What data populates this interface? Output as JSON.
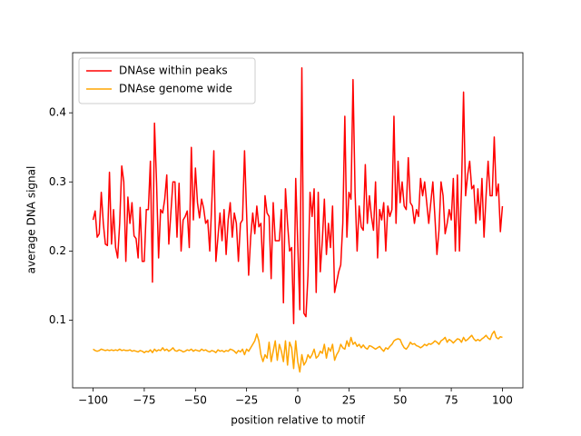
{
  "chart_data": {
    "type": "line",
    "xlabel": "position relative to motif",
    "ylabel": "average DNA signal",
    "x": [
      -100,
      -99,
      -98,
      -97,
      -96,
      -95,
      -94,
      -93,
      -92,
      -91,
      -90,
      -89,
      -88,
      -87,
      -86,
      -85,
      -84,
      -83,
      -82,
      -81,
      -80,
      -79,
      -78,
      -77,
      -76,
      -75,
      -74,
      -73,
      -72,
      -71,
      -70,
      -69,
      -68,
      -67,
      -66,
      -65,
      -64,
      -63,
      -62,
      -61,
      -60,
      -59,
      -58,
      -57,
      -56,
      -55,
      -54,
      -53,
      -52,
      -51,
      -50,
      -49,
      -48,
      -47,
      -46,
      -45,
      -44,
      -43,
      -42,
      -41,
      -40,
      -39,
      -38,
      -37,
      -36,
      -35,
      -34,
      -33,
      -32,
      -31,
      -30,
      -29,
      -28,
      -27,
      -26,
      -25,
      -24,
      -23,
      -22,
      -21,
      -20,
      -19,
      -18,
      -17,
      -16,
      -15,
      -14,
      -13,
      -12,
      -11,
      -10,
      -9,
      -8,
      -7,
      -6,
      -5,
      -4,
      -3,
      -2,
      -1,
      0,
      1,
      2,
      3,
      4,
      5,
      6,
      7,
      8,
      9,
      10,
      11,
      12,
      13,
      14,
      15,
      16,
      17,
      18,
      19,
      20,
      21,
      22,
      23,
      24,
      25,
      26,
      27,
      28,
      29,
      30,
      31,
      32,
      33,
      34,
      35,
      36,
      37,
      38,
      39,
      40,
      41,
      42,
      43,
      44,
      45,
      46,
      47,
      48,
      49,
      50,
      51,
      52,
      53,
      54,
      55,
      56,
      57,
      58,
      59,
      60,
      61,
      62,
      63,
      64,
      65,
      66,
      67,
      68,
      69,
      70,
      71,
      72,
      73,
      74,
      75,
      76,
      77,
      78,
      79,
      80,
      81,
      82,
      83,
      84,
      85,
      86,
      87,
      88,
      89,
      90,
      91,
      92,
      93,
      94,
      95,
      96,
      97,
      98,
      99,
      100
    ],
    "series": [
      {
        "name": "DNAse within peaks",
        "color": "#ff0000",
        "values": [
          0.245,
          0.258,
          0.22,
          0.225,
          0.285,
          0.24,
          0.21,
          0.208,
          0.314,
          0.21,
          0.26,
          0.205,
          0.19,
          0.24,
          0.323,
          0.3,
          0.185,
          0.278,
          0.24,
          0.27,
          0.222,
          0.218,
          0.19,
          0.263,
          0.185,
          0.185,
          0.26,
          0.26,
          0.33,
          0.155,
          0.385,
          0.3,
          0.19,
          0.26,
          0.255,
          0.275,
          0.31,
          0.21,
          0.255,
          0.3,
          0.3,
          0.22,
          0.298,
          0.2,
          0.245,
          0.25,
          0.258,
          0.205,
          0.35,
          0.245,
          0.32,
          0.27,
          0.248,
          0.275,
          0.262,
          0.24,
          0.245,
          0.2,
          0.27,
          0.345,
          0.185,
          0.22,
          0.255,
          0.215,
          0.26,
          0.195,
          0.245,
          0.27,
          0.22,
          0.255,
          0.24,
          0.185,
          0.24,
          0.245,
          0.345,
          0.255,
          0.165,
          0.22,
          0.255,
          0.225,
          0.265,
          0.235,
          0.24,
          0.17,
          0.28,
          0.255,
          0.25,
          0.16,
          0.27,
          0.215,
          0.215,
          0.215,
          0.26,
          0.125,
          0.29,
          0.24,
          0.2,
          0.205,
          0.095,
          0.305,
          0.21,
          0.115,
          0.465,
          0.11,
          0.105,
          0.165,
          0.285,
          0.25,
          0.29,
          0.14,
          0.285,
          0.17,
          0.215,
          0.275,
          0.195,
          0.24,
          0.205,
          0.265,
          0.14,
          0.155,
          0.17,
          0.18,
          0.24,
          0.395,
          0.22,
          0.285,
          0.275,
          0.448,
          0.285,
          0.2,
          0.265,
          0.235,
          0.23,
          0.325,
          0.24,
          0.28,
          0.25,
          0.23,
          0.3,
          0.19,
          0.26,
          0.245,
          0.27,
          0.2,
          0.265,
          0.25,
          0.26,
          0.395,
          0.24,
          0.33,
          0.27,
          0.3,
          0.265,
          0.26,
          0.335,
          0.27,
          0.265,
          0.24,
          0.26,
          0.25,
          0.305,
          0.28,
          0.3,
          0.27,
          0.24,
          0.27,
          0.3,
          0.25,
          0.195,
          0.23,
          0.3,
          0.28,
          0.225,
          0.24,
          0.26,
          0.245,
          0.305,
          0.2,
          0.31,
          0.2,
          0.29,
          0.43,
          0.28,
          0.31,
          0.33,
          0.29,
          0.295,
          0.24,
          0.29,
          0.245,
          0.305,
          0.22,
          0.28,
          0.33,
          0.28,
          0.28,
          0.365,
          0.28,
          0.297,
          0.228,
          0.265
        ]
      },
      {
        "name": "DNAse genome wide",
        "color": "#ffa500",
        "values": [
          0.058,
          0.056,
          0.055,
          0.056,
          0.058,
          0.057,
          0.056,
          0.057,
          0.056,
          0.057,
          0.056,
          0.057,
          0.056,
          0.058,
          0.056,
          0.057,
          0.056,
          0.056,
          0.057,
          0.055,
          0.056,
          0.055,
          0.054,
          0.056,
          0.055,
          0.053,
          0.055,
          0.054,
          0.057,
          0.053,
          0.058,
          0.055,
          0.057,
          0.056,
          0.06,
          0.056,
          0.058,
          0.055,
          0.057,
          0.06,
          0.056,
          0.055,
          0.057,
          0.056,
          0.054,
          0.055,
          0.057,
          0.056,
          0.058,
          0.055,
          0.057,
          0.056,
          0.055,
          0.058,
          0.056,
          0.057,
          0.055,
          0.054,
          0.056,
          0.055,
          0.053,
          0.057,
          0.055,
          0.056,
          0.054,
          0.056,
          0.055,
          0.058,
          0.057,
          0.055,
          0.052,
          0.056,
          0.054,
          0.058,
          0.05,
          0.058,
          0.055,
          0.06,
          0.065,
          0.07,
          0.08,
          0.07,
          0.05,
          0.04,
          0.05,
          0.045,
          0.068,
          0.04,
          0.055,
          0.07,
          0.042,
          0.065,
          0.055,
          0.04,
          0.07,
          0.035,
          0.068,
          0.06,
          0.03,
          0.07,
          0.04,
          0.025,
          0.05,
          0.035,
          0.04,
          0.05,
          0.045,
          0.05,
          0.058,
          0.045,
          0.048,
          0.055,
          0.052,
          0.065,
          0.045,
          0.06,
          0.055,
          0.065,
          0.042,
          0.05,
          0.055,
          0.065,
          0.06,
          0.058,
          0.07,
          0.062,
          0.075,
          0.065,
          0.068,
          0.062,
          0.065,
          0.06,
          0.064,
          0.06,
          0.058,
          0.063,
          0.062,
          0.06,
          0.058,
          0.06,
          0.062,
          0.058,
          0.055,
          0.06,
          0.058,
          0.062,
          0.065,
          0.07,
          0.072,
          0.073,
          0.072,
          0.065,
          0.06,
          0.058,
          0.062,
          0.068,
          0.065,
          0.066,
          0.063,
          0.062,
          0.06,
          0.062,
          0.065,
          0.063,
          0.066,
          0.065,
          0.067,
          0.07,
          0.068,
          0.065,
          0.07,
          0.072,
          0.075,
          0.068,
          0.072,
          0.07,
          0.067,
          0.07,
          0.073,
          0.072,
          0.068,
          0.075,
          0.07,
          0.072,
          0.075,
          0.078,
          0.073,
          0.07,
          0.072,
          0.07,
          0.073,
          0.075,
          0.078,
          0.074,
          0.072,
          0.08,
          0.084,
          0.075,
          0.073,
          0.076,
          0.075
        ]
      }
    ],
    "xlim": [
      -110,
      110
    ],
    "xticks": [
      {
        "value": -100,
        "label": "−100"
      },
      {
        "value": -75,
        "label": "−75"
      },
      {
        "value": -50,
        "label": "−50"
      },
      {
        "value": -25,
        "label": "−25"
      },
      0,
      25,
      50,
      75,
      100
    ],
    "ylim": [
      0.002,
      0.487
    ],
    "yticks": [
      0.1,
      0.2,
      0.3,
      0.4
    ],
    "legend": "upper left"
  }
}
